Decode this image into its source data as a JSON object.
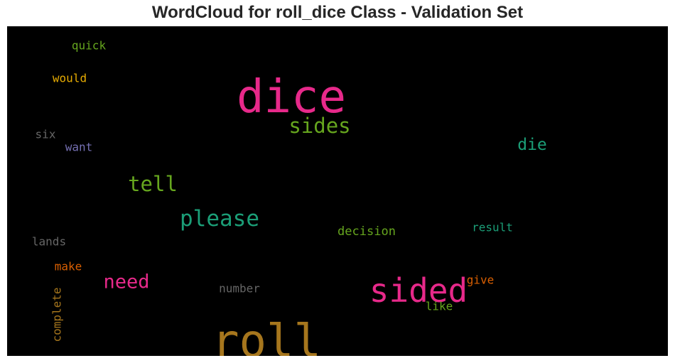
{
  "chart_data": {
    "type": "wordcloud",
    "title": "WordCloud for roll_dice Class - Validation Set",
    "background": "#000000",
    "words": [
      {
        "text": "dice",
        "weight": 1.0,
        "color": "#e7298a"
      },
      {
        "text": "roll",
        "weight": 0.97,
        "color": "#a6761d"
      },
      {
        "text": "sided",
        "weight": 0.7,
        "color": "#e7298a"
      },
      {
        "text": "please",
        "weight": 0.48,
        "color": "#1b9e77"
      },
      {
        "text": "tell",
        "weight": 0.45,
        "color": "#66a61e"
      },
      {
        "text": "sides",
        "weight": 0.45,
        "color": "#66a61e"
      },
      {
        "text": "need",
        "weight": 0.42,
        "color": "#e7298a"
      },
      {
        "text": "die",
        "weight": 0.36,
        "color": "#1b9e77"
      },
      {
        "text": "decision",
        "weight": 0.27,
        "color": "#66a61e"
      },
      {
        "text": "result",
        "weight": 0.25,
        "color": "#1b9e77"
      },
      {
        "text": "number",
        "weight": 0.25,
        "color": "#666666"
      },
      {
        "text": "give",
        "weight": 0.25,
        "color": "#d95f02"
      },
      {
        "text": "like",
        "weight": 0.24,
        "color": "#66a61e"
      },
      {
        "text": "complete",
        "weight": 0.24,
        "color": "#a6761d",
        "vertical": true
      },
      {
        "text": "make",
        "weight": 0.24,
        "color": "#d95f02"
      },
      {
        "text": "lands",
        "weight": 0.24,
        "color": "#666666"
      },
      {
        "text": "want",
        "weight": 0.24,
        "color": "#7570b3"
      },
      {
        "text": "six",
        "weight": 0.24,
        "color": "#666666"
      },
      {
        "text": "would",
        "weight": 0.24,
        "color": "#e6ab02"
      },
      {
        "text": "quick",
        "weight": 0.24,
        "color": "#66a61e"
      }
    ]
  }
}
